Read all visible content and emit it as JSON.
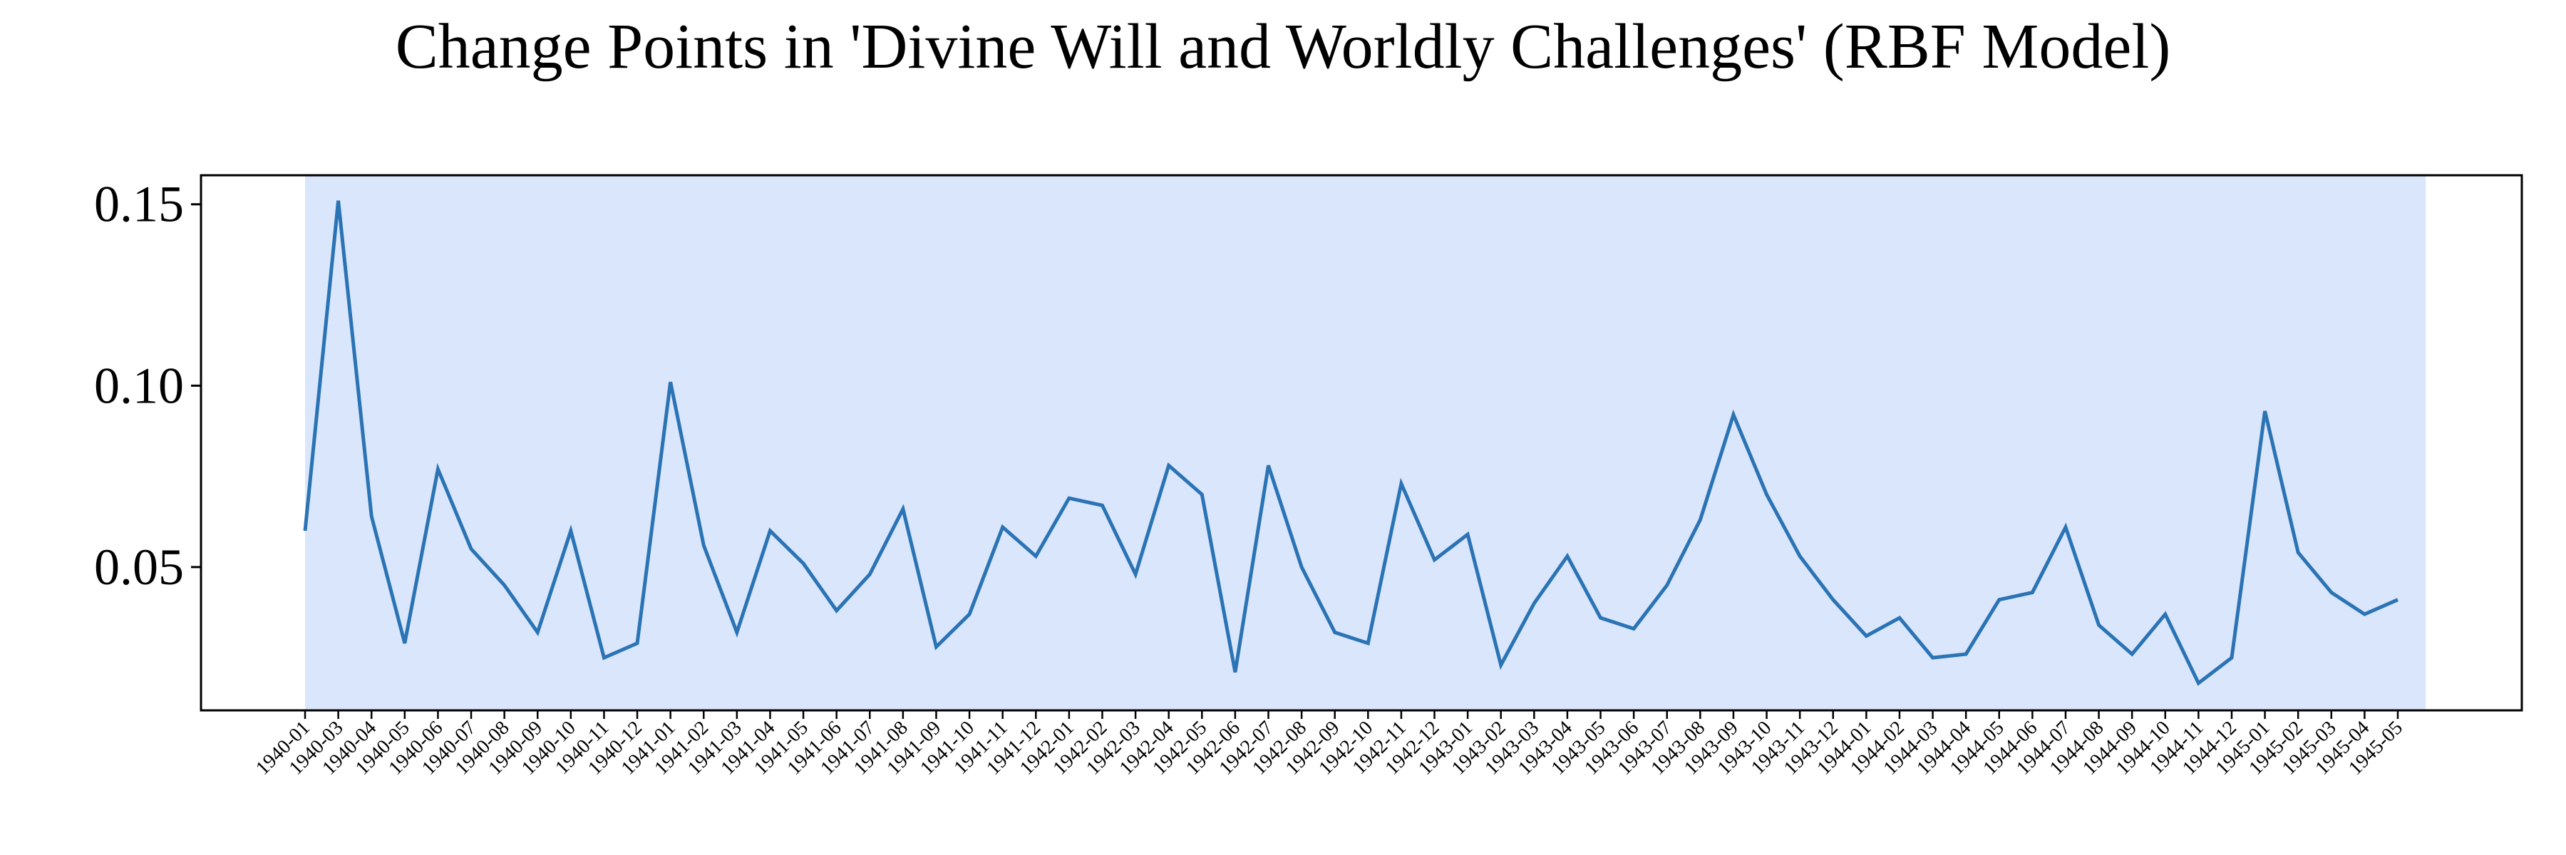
{
  "chart_data": {
    "type": "line",
    "title": "Change Points in 'Divine Will and Worldly Challenges' (RBF Model)",
    "xlabel": "",
    "ylabel": "",
    "ylim": [
      0.0105,
      0.158
    ],
    "yticks": [
      0.05,
      0.1,
      0.15
    ],
    "ytick_labels": [
      "0.05",
      "0.10",
      "0.15"
    ],
    "grid": false,
    "legend": "none",
    "shaded_region": {
      "from": "1940-01",
      "to": "1945-05",
      "color": "#dae6fb"
    },
    "line_color": "#2a73b4",
    "x": [
      "1940-01",
      "1940-03",
      "1940-04",
      "1940-05",
      "1940-06",
      "1940-07",
      "1940-08",
      "1940-09",
      "1940-10",
      "1940-11",
      "1940-12",
      "1941-01",
      "1941-02",
      "1941-03",
      "1941-04",
      "1941-05",
      "1941-06",
      "1941-07",
      "1941-08",
      "1941-09",
      "1941-10",
      "1941-11",
      "1941-12",
      "1942-01",
      "1942-02",
      "1942-03",
      "1942-04",
      "1942-05",
      "1942-06",
      "1942-07",
      "1942-08",
      "1942-09",
      "1942-10",
      "1942-11",
      "1942-12",
      "1943-01",
      "1943-02",
      "1943-03",
      "1943-04",
      "1943-05",
      "1943-06",
      "1943-07",
      "1943-08",
      "1943-09",
      "1943-10",
      "1943-11",
      "1943-12",
      "1944-01",
      "1944-02",
      "1944-03",
      "1944-04",
      "1944-05",
      "1944-06",
      "1944-07",
      "1944-08",
      "1944-09",
      "1944-10",
      "1944-11",
      "1944-12",
      "1945-01",
      "1945-02",
      "1945-03",
      "1945-04",
      "1945-05"
    ],
    "series": [
      {
        "values": [
          0.06,
          0.151,
          0.064,
          0.029,
          0.077,
          0.055,
          0.045,
          0.032,
          0.06,
          0.025,
          0.029,
          0.101,
          0.056,
          0.032,
          0.06,
          0.051,
          0.038,
          0.048,
          0.066,
          0.028,
          0.037,
          0.061,
          0.053,
          0.069,
          0.067,
          0.048,
          0.078,
          0.07,
          0.021,
          0.078,
          0.05,
          0.032,
          0.029,
          0.073,
          0.052,
          0.059,
          0.023,
          0.04,
          0.053,
          0.036,
          0.033,
          0.045,
          0.063,
          0.092,
          0.07,
          0.053,
          0.041,
          0.031,
          0.036,
          0.025,
          0.026,
          0.041,
          0.043,
          0.061,
          0.034,
          0.026,
          0.037,
          0.018,
          0.025,
          0.093,
          0.054,
          0.043,
          0.037,
          0.041
        ]
      }
    ]
  }
}
